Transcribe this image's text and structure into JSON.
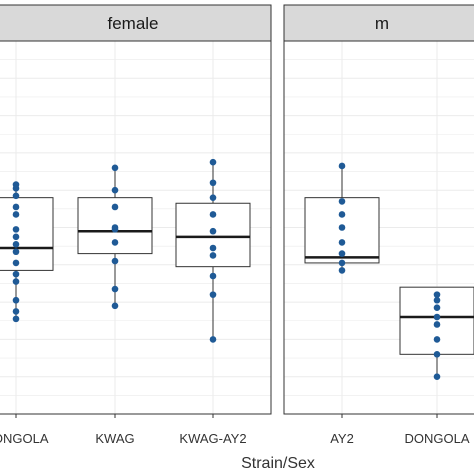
{
  "chart_data": {
    "type": "box",
    "xlabel": "Strain/Sex",
    "ylabel": "",
    "ylim": [
      0,
      10
    ],
    "grid": true,
    "colors": {
      "point": "#1f5a96",
      "box_fill": "#ffffff",
      "box_line": "#333333",
      "strip_fill": "#d9d9d9",
      "grid": "#ebebeb"
    },
    "panels": [
      {
        "label": "female",
        "categories": [
          {
            "name": "DONGOLA",
            "box": {
              "q1": 3.85,
              "median": 4.45,
              "q3": 5.8
            },
            "points": [
              6.15,
              6.05,
              5.85,
              5.35,
              4.95,
              4.75,
              4.55,
              4.35,
              4.05,
              3.75,
              3.55,
              3.05,
              2.75,
              2.55,
              5.55
            ]
          },
          {
            "name": "KWAG",
            "box": {
              "q1": 4.3,
              "median": 4.9,
              "q3": 5.8
            },
            "points": [
              6.6,
              6.0,
              5.55,
              5.0,
              4.95,
              4.6,
              4.1,
              3.35,
              2.9
            ]
          },
          {
            "name": "KWAG-AY2",
            "box": {
              "q1": 3.95,
              "median": 4.75,
              "q3": 5.65
            },
            "points": [
              6.75,
              6.2,
              5.8,
              5.35,
              4.9,
              4.45,
              4.25,
              3.7,
              3.2,
              2.0
            ]
          }
        ]
      },
      {
        "label": "m",
        "categories": [
          {
            "name": "AY2",
            "box": {
              "q1": 4.05,
              "median": 4.2,
              "q3": 5.8
            },
            "points": [
              6.65,
              5.7,
              5.35,
              5.0,
              4.6,
              4.3,
              4.05,
              3.85
            ]
          },
          {
            "name": "DONGOLA",
            "box": {
              "q1": 1.6,
              "median": 2.6,
              "q3": 3.4
            },
            "points": [
              3.2,
              3.05,
              2.85,
              2.6,
              2.4,
              2.0,
              1.6,
              1.0
            ]
          }
        ]
      }
    ]
  }
}
